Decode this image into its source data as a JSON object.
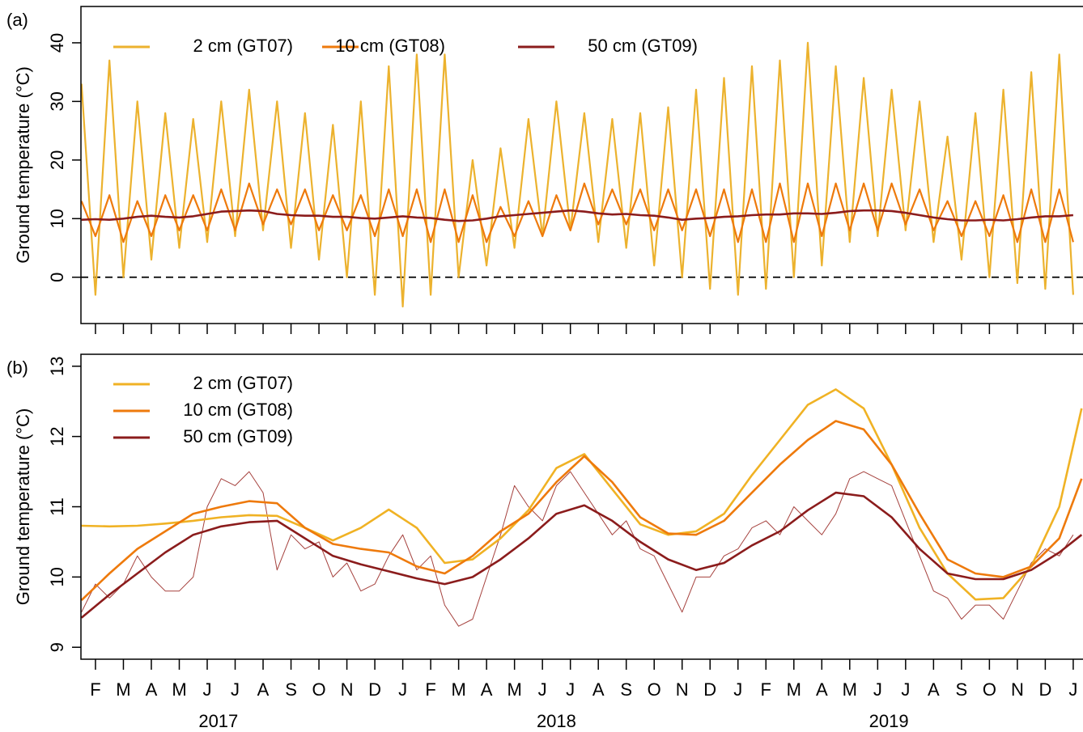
{
  "chart_data": [
    {
      "type": "line",
      "label": "(a)",
      "ylabel": "Ground temperature (°C)",
      "xlim": [
        0.48,
        36.35
      ],
      "ylim": [
        -7.9,
        46.2
      ],
      "yticks": [
        0,
        10,
        20,
        30,
        40
      ],
      "xticks": [
        1,
        2,
        3,
        4,
        5,
        6,
        7,
        8,
        9,
        10,
        11,
        12,
        13,
        14,
        15,
        16,
        17,
        18,
        19,
        20,
        21,
        22,
        23,
        24,
        25,
        26,
        27,
        28,
        29,
        30,
        31,
        32,
        33,
        34,
        35,
        36
      ],
      "reference_line": 0,
      "legend": "top",
      "x": [
        0.5,
        1.0,
        1.5,
        2.0,
        2.5,
        3.0,
        3.5,
        4.0,
        4.5,
        5.0,
        5.5,
        6.0,
        6.5,
        7.0,
        7.5,
        8.0,
        8.5,
        9.0,
        9.5,
        10.0,
        10.5,
        11.0,
        11.5,
        12.0,
        12.5,
        13.0,
        13.5,
        14.0,
        14.5,
        15.0,
        15.5,
        16.0,
        16.5,
        17.0,
        17.5,
        18.0,
        18.5,
        19.0,
        19.5,
        20.0,
        20.5,
        21.0,
        21.5,
        22.0,
        22.5,
        23.0,
        23.5,
        24.0,
        24.5,
        25.0,
        25.5,
        26.0,
        26.5,
        27.0,
        27.5,
        28.0,
        28.5,
        29.0,
        29.5,
        30.0,
        30.5,
        31.0,
        31.5,
        32.0,
        32.5,
        33.0,
        33.5,
        34.0,
        34.5,
        35.0,
        35.5,
        36.0
      ],
      "series": [
        {
          "name": "2 cm (GT07)",
          "color": "#ecb22e",
          "values": [
            33,
            -3,
            37,
            0,
            30,
            3,
            28,
            5,
            27,
            6,
            30,
            7,
            32,
            8,
            30,
            5,
            28,
            3,
            26,
            0,
            30,
            -3,
            36,
            -5,
            38,
            -3,
            38,
            0,
            20,
            2,
            22,
            5,
            27,
            7,
            30,
            8,
            28,
            6,
            27,
            5,
            28,
            2,
            29,
            0,
            32,
            -2,
            34,
            -3,
            36,
            -2,
            37,
            0,
            40,
            2,
            36,
            6,
            34,
            7,
            32,
            8,
            30,
            6,
            24,
            3,
            28,
            0,
            32,
            -1,
            35,
            -2,
            38,
            -3
          ]
        },
        {
          "name": "10 cm (GT08)",
          "color": "#ee7a0c",
          "values": [
            13,
            7,
            14,
            6,
            13,
            7,
            14,
            8,
            14,
            8,
            15,
            8,
            16,
            9,
            15,
            9,
            15,
            8,
            14,
            8,
            14,
            7,
            15,
            7,
            15,
            6,
            15,
            6,
            14,
            6,
            12,
            7,
            13,
            7,
            14,
            8,
            16,
            9,
            15,
            9,
            15,
            8,
            15,
            8,
            15,
            7,
            15,
            6,
            15,
            6,
            16,
            6,
            16,
            7,
            16,
            8,
            16,
            8,
            16,
            9,
            15,
            8,
            13,
            7,
            13,
            7,
            14,
            6,
            15,
            6,
            15,
            6
          ]
        },
        {
          "name": "50 cm (GT09)",
          "color": "#8b1c1c",
          "values": [
            9.8,
            9.9,
            9.8,
            10.0,
            10.3,
            10.5,
            10.3,
            10.2,
            10.4,
            10.8,
            11.2,
            11.3,
            11.4,
            11.3,
            10.8,
            10.6,
            10.5,
            10.5,
            10.3,
            10.3,
            10.1,
            10.0,
            10.2,
            10.4,
            10.2,
            10.1,
            9.8,
            9.6,
            9.7,
            10.0,
            10.4,
            10.6,
            10.8,
            11.0,
            11.2,
            11.4,
            11.2,
            10.9,
            10.7,
            10.8,
            10.6,
            10.5,
            10.2,
            9.8,
            10.0,
            10.1,
            10.3,
            10.4,
            10.6,
            10.7,
            10.7,
            10.9,
            10.9,
            10.8,
            11.0,
            11.3,
            11.4,
            11.4,
            11.3,
            11.0,
            10.6,
            10.2,
            9.9,
            9.7,
            9.7,
            9.8,
            9.7,
            9.9,
            10.2,
            10.4,
            10.4,
            10.6
          ]
        }
      ]
    },
    {
      "type": "line",
      "label": "(b)",
      "ylabel": "Ground temperature (°C)",
      "xlim": [
        0.48,
        36.35
      ],
      "ylim": [
        8.83,
        13.17
      ],
      "yticks": [
        9,
        10,
        11,
        12,
        13
      ],
      "xticks": [
        {
          "value": 1,
          "label": "F"
        },
        {
          "value": 2,
          "label": "M"
        },
        {
          "value": 3,
          "label": "A"
        },
        {
          "value": 4,
          "label": "M"
        },
        {
          "value": 5,
          "label": "J"
        },
        {
          "value": 6,
          "label": "J"
        },
        {
          "value": 7,
          "label": "A"
        },
        {
          "value": 8,
          "label": "S"
        },
        {
          "value": 9,
          "label": "O"
        },
        {
          "value": 10,
          "label": "N"
        },
        {
          "value": 11,
          "label": "D"
        },
        {
          "value": 12,
          "label": "J"
        },
        {
          "value": 13,
          "label": "F"
        },
        {
          "value": 14,
          "label": "M"
        },
        {
          "value": 15,
          "label": "A"
        },
        {
          "value": 16,
          "label": "M"
        },
        {
          "value": 17,
          "label": "J"
        },
        {
          "value": 18,
          "label": "J"
        },
        {
          "value": 19,
          "label": "A"
        },
        {
          "value": 20,
          "label": "S"
        },
        {
          "value": 21,
          "label": "O"
        },
        {
          "value": 22,
          "label": "N"
        },
        {
          "value": 23,
          "label": "D"
        },
        {
          "value": 24,
          "label": "J"
        },
        {
          "value": 25,
          "label": "F"
        },
        {
          "value": 26,
          "label": "M"
        },
        {
          "value": 27,
          "label": "A"
        },
        {
          "value": 28,
          "label": "M"
        },
        {
          "value": 29,
          "label": "J"
        },
        {
          "value": 30,
          "label": "J"
        },
        {
          "value": 31,
          "label": "A"
        },
        {
          "value": 32,
          "label": "S"
        },
        {
          "value": 33,
          "label": "O"
        },
        {
          "value": 34,
          "label": "N"
        },
        {
          "value": 35,
          "label": "D"
        },
        {
          "value": 36,
          "label": "J"
        }
      ],
      "annotations": [
        {
          "x": 5.4,
          "text": "2017"
        },
        {
          "x": 17.5,
          "text": "2018"
        },
        {
          "x": 29.4,
          "text": "2019"
        }
      ],
      "legend": "top-left",
      "x": [
        0.5,
        1.5,
        2.5,
        3.5,
        4.5,
        5.5,
        6.5,
        7.5,
        8.5,
        9.5,
        10.5,
        11.5,
        12.5,
        13.5,
        14.5,
        15.5,
        16.5,
        17.5,
        18.5,
        19.5,
        20.5,
        21.5,
        22.5,
        23.5,
        24.5,
        25.5,
        26.5,
        27.5,
        28.5,
        29.5,
        30.5,
        31.5,
        32.5,
        33.5,
        34.5,
        35.5,
        36.3
      ],
      "series": [
        {
          "color": "#a5413d",
          "x": [
            0.5,
            1.0,
            1.5,
            2.0,
            2.5,
            3.0,
            3.5,
            4.0,
            4.5,
            5.0,
            5.5,
            6.0,
            6.5,
            7.0,
            7.5,
            8.0,
            8.5,
            9.0,
            9.5,
            10.0,
            10.5,
            11.0,
            11.5,
            12.0,
            12.5,
            13.0,
            13.5,
            14.0,
            14.5,
            15.0,
            15.5,
            16.0,
            16.5,
            17.0,
            17.5,
            18.0,
            18.5,
            19.0,
            19.5,
            20.0,
            20.5,
            21.0,
            21.5,
            22.0,
            22.5,
            23.0,
            23.5,
            24.0,
            24.5,
            25.0,
            25.5,
            26.0,
            26.5,
            27.0,
            27.5,
            28.0,
            28.5,
            29.0,
            29.5,
            30.0,
            30.5,
            31.0,
            31.5,
            32.0,
            32.5,
            33.0,
            33.5,
            34.0,
            34.5,
            35.0,
            35.5,
            36.0
          ],
          "values": [
            9.5,
            9.9,
            9.7,
            9.9,
            10.3,
            10.0,
            9.8,
            9.8,
            10.0,
            11.0,
            11.4,
            11.3,
            11.5,
            11.2,
            10.1,
            10.6,
            10.4,
            10.5,
            10.0,
            10.2,
            9.8,
            9.9,
            10.3,
            10.6,
            10.1,
            10.3,
            9.6,
            9.3,
            9.4,
            10.0,
            10.6,
            11.3,
            11.0,
            10.8,
            11.3,
            11.5,
            11.2,
            10.9,
            10.6,
            10.8,
            10.4,
            10.3,
            9.9,
            9.5,
            10.0,
            10.0,
            10.3,
            10.4,
            10.7,
            10.8,
            10.6,
            11.0,
            10.8,
            10.6,
            10.9,
            11.4,
            11.5,
            11.4,
            11.3,
            10.8,
            10.3,
            9.8,
            9.7,
            9.4,
            9.6,
            9.6,
            9.4,
            9.8,
            10.2,
            10.4,
            10.3,
            10.6
          ]
        },
        {
          "name": "2 cm (GT07)",
          "color": "#f0b224",
          "values": [
            10.73,
            10.72,
            10.73,
            10.76,
            10.8,
            10.85,
            10.88,
            10.87,
            10.7,
            10.52,
            10.7,
            10.96,
            10.7,
            10.2,
            10.25,
            10.55,
            10.95,
            11.55,
            11.75,
            11.25,
            10.75,
            10.6,
            10.65,
            10.9,
            11.45,
            11.95,
            12.45,
            12.67,
            12.4,
            11.6,
            10.7,
            10.05,
            9.68,
            9.7,
            10.15,
            11.0,
            12.4
          ]
        },
        {
          "name": "10 cm (GT08)",
          "color": "#ee7a0c",
          "values": [
            9.67,
            10.05,
            10.4,
            10.65,
            10.9,
            11.0,
            11.08,
            11.05,
            10.7,
            10.47,
            10.4,
            10.35,
            10.15,
            10.05,
            10.3,
            10.65,
            10.9,
            11.35,
            11.72,
            11.35,
            10.85,
            10.62,
            10.6,
            10.8,
            11.2,
            11.6,
            11.95,
            12.22,
            12.1,
            11.6,
            10.9,
            10.25,
            10.05,
            10.0,
            10.15,
            10.55,
            11.4
          ]
        },
        {
          "name": "50 cm (GT09)",
          "color": "#8b1c1c",
          "values": [
            9.42,
            9.75,
            10.05,
            10.35,
            10.6,
            10.72,
            10.78,
            10.8,
            10.55,
            10.3,
            10.18,
            10.08,
            9.98,
            9.9,
            10.0,
            10.25,
            10.55,
            10.9,
            11.02,
            10.8,
            10.5,
            10.25,
            10.1,
            10.2,
            10.45,
            10.65,
            10.95,
            11.2,
            11.15,
            10.85,
            10.4,
            10.05,
            9.97,
            9.97,
            10.1,
            10.35,
            10.6
          ]
        }
      ]
    }
  ]
}
